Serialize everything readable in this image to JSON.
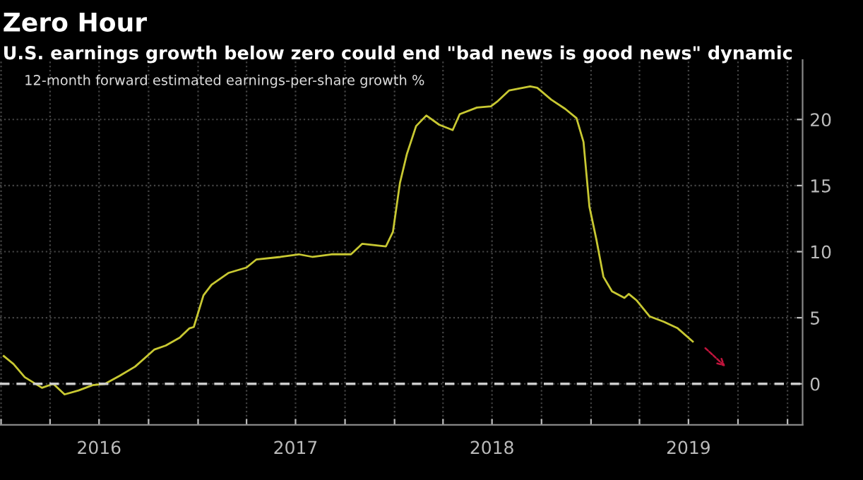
{
  "chart_data": {
    "type": "line",
    "title": "Zero Hour",
    "subtitle": "U.S. earnings growth below zero could end \"bad news is good news\" dynamic",
    "annotations": [
      "12-month forward estimated earnings-per-share growth %"
    ],
    "x": [
      "2016-01-06",
      "2016-01-24",
      "2016-02-14",
      "2016-03-17",
      "2016-04-07",
      "2016-04-28",
      "2016-05-24",
      "2016-06-19",
      "2016-07-12",
      "2016-08-08",
      "2016-09-06",
      "2016-10-12",
      "2016-11-02",
      "2016-11-28",
      "2016-12-16",
      "2016-12-24",
      "2017-01-11",
      "2017-01-26",
      "2017-02-27",
      "2017-04-01",
      "2017-04-19",
      "2017-06-03",
      "2017-07-07",
      "2017-08-02",
      "2017-09-06",
      "2017-10-12",
      "2017-11-02",
      "2017-12-16",
      "2017-12-29",
      "2018-01-11",
      "2018-01-24",
      "2018-02-10",
      "2018-03-01",
      "2018-03-25",
      "2018-04-19",
      "2018-05-02",
      "2018-06-03",
      "2018-06-29",
      "2018-07-12",
      "2018-08-02",
      "2018-09-10",
      "2018-09-23",
      "2018-10-19",
      "2018-11-14",
      "2018-12-05",
      "2018-12-18",
      "2018-12-29",
      "2019-01-11",
      "2019-01-24",
      "2019-02-09",
      "2019-03-04",
      "2019-03-12",
      "2019-03-27",
      "2019-04-20",
      "2019-05-16",
      "2019-06-11",
      "2019-07-09"
    ],
    "series": [
      {
        "color": "#c8c832",
        "values": [
          2.1,
          1.5,
          0.5,
          -0.3,
          0,
          -0.8,
          -0.5,
          -0.1,
          0,
          0.6,
          1.3,
          2.6,
          2.9,
          3.5,
          4.2,
          4.3,
          6.7,
          7.5,
          8.4,
          8.8,
          9.4,
          9.6,
          9.8,
          9.6,
          9.8,
          9.8,
          10.6,
          10.4,
          11.5,
          15.2,
          17.4,
          19.5,
          20.3,
          19.6,
          19.2,
          20.4,
          20.9,
          21.0,
          21.4,
          22.2,
          22.5,
          22.4,
          21.5,
          20.8,
          20.1,
          18.3,
          13.4,
          10.9,
          8.1,
          7.0,
          6.5,
          6.8,
          6.3,
          5.1,
          4.7,
          4.2,
          3.2
        ]
      }
    ],
    "xlim": [
      "2015-12-30",
      "2020-01-29"
    ],
    "xticks": [
      {
        "value": "2016-01-01",
        "label": null
      },
      {
        "value": "2016-04-01",
        "label": null
      },
      {
        "value": "2016-07-01",
        "label": "2016"
      },
      {
        "value": "2016-10-01",
        "label": null
      },
      {
        "value": "2017-01-01",
        "label": null
      },
      {
        "value": "2017-04-01",
        "label": null
      },
      {
        "value": "2017-07-01",
        "label": "2017"
      },
      {
        "value": "2017-10-01",
        "label": null
      },
      {
        "value": "2018-01-01",
        "label": null
      },
      {
        "value": "2018-04-01",
        "label": null
      },
      {
        "value": "2018-07-01",
        "label": "2018"
      },
      {
        "value": "2018-10-01",
        "label": null
      },
      {
        "value": "2019-01-01",
        "label": null
      },
      {
        "value": "2019-04-01",
        "label": null
      },
      {
        "value": "2019-07-01",
        "label": "2019"
      },
      {
        "value": "2019-10-01",
        "label": null
      },
      {
        "value": "2020-01-01",
        "label": null
      }
    ],
    "ylim": [
      -3.1,
      24.5
    ],
    "yticks": [
      0,
      5,
      10,
      15,
      20
    ],
    "grid": true,
    "ref_lines": [
      {
        "axis": "y",
        "value": 0,
        "color": "#cccccc",
        "line_style": "dashed"
      }
    ],
    "line_style": "solid"
  }
}
